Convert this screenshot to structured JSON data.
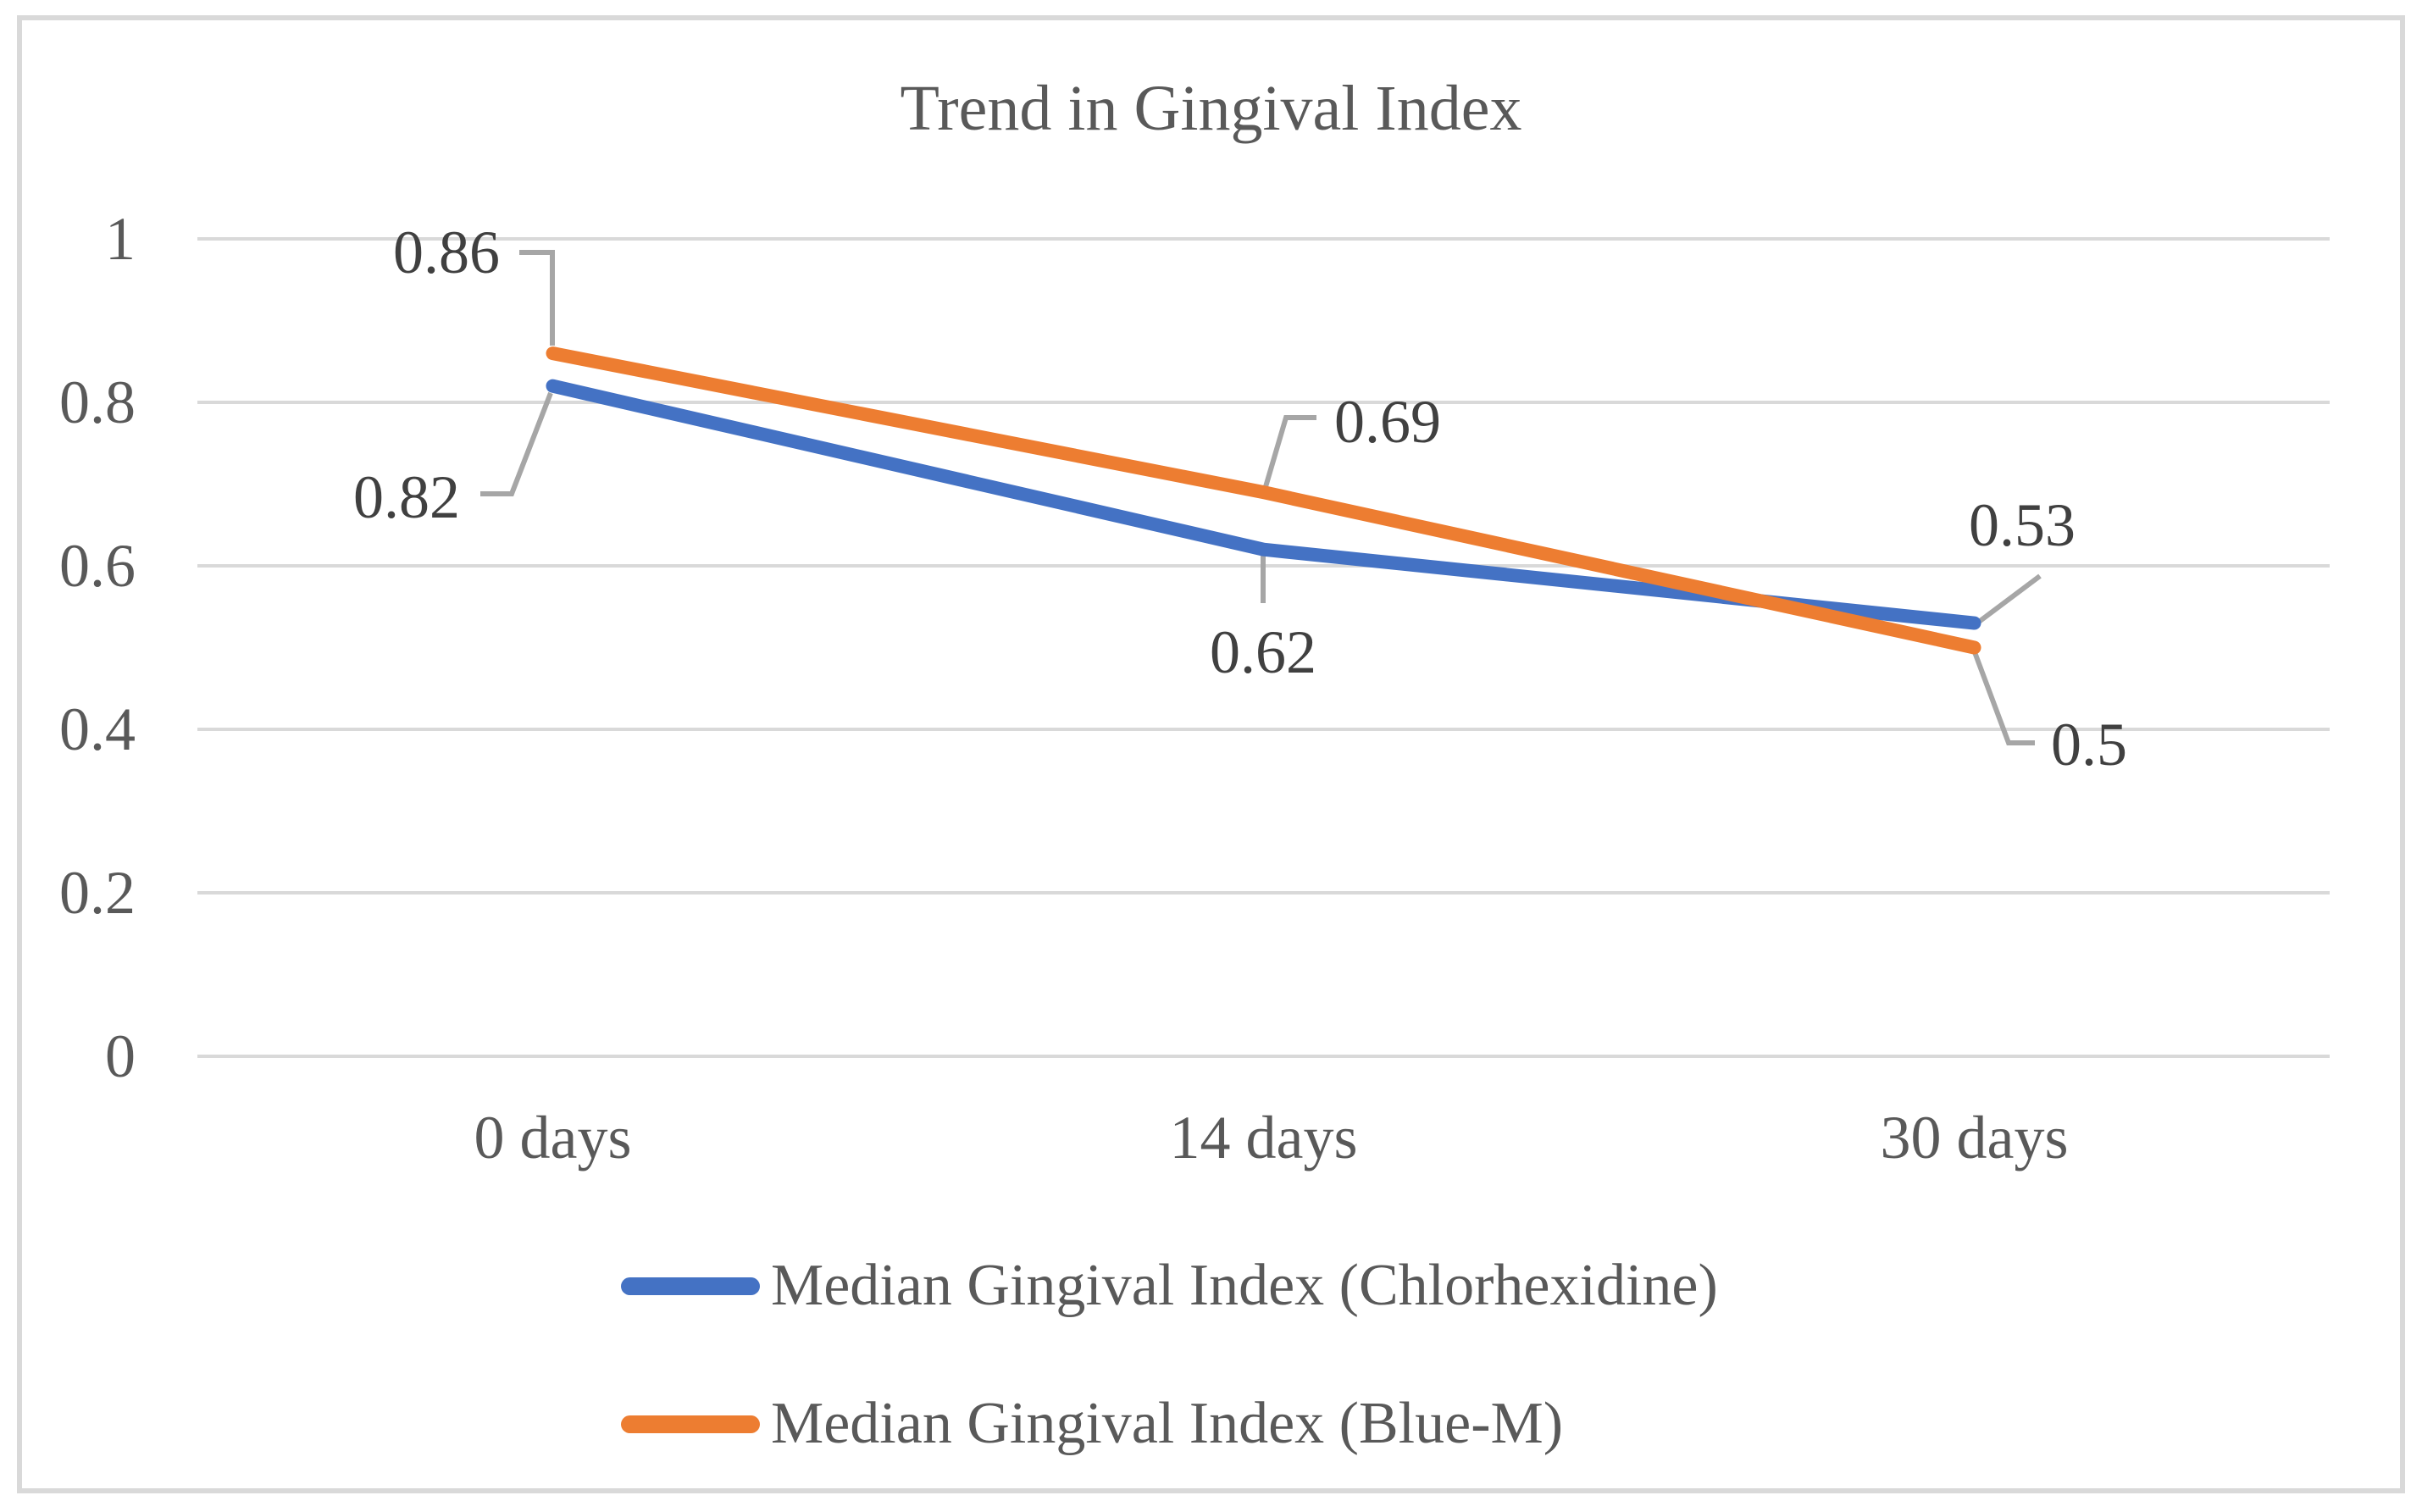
{
  "chart_data": {
    "type": "line",
    "title": "Trend in Gingival Index",
    "categories": [
      "0 days",
      "14 days",
      "30 days"
    ],
    "series": [
      {
        "name": "Median Gingival Index (Chlorhexidine)",
        "color": "#4472C4",
        "values": [
          0.82,
          0.62,
          0.53
        ],
        "point_labels": [
          "0.82",
          "0.62",
          "0.53"
        ]
      },
      {
        "name": "Median Gingival Index (Blue-M)",
        "color": "#ED7D31",
        "values": [
          0.86,
          0.69,
          0.5
        ],
        "point_labels": [
          "0.86",
          "0.69",
          "0.5"
        ]
      }
    ],
    "xlabel": "",
    "ylabel": "",
    "ylim": [
      0,
      1
    ],
    "yticks": [
      0,
      0.2,
      0.4,
      0.6,
      0.8,
      1
    ],
    "ytick_labels": [
      "0",
      "0.2",
      "0.4",
      "0.6",
      "0.8",
      "1"
    ],
    "grid": "horizontal-only",
    "legend_position": "bottom",
    "data_labels_shown": true
  },
  "colors": {
    "gridline": "#D9D9D9",
    "figure_border": "#D9D9D9",
    "axis_text": "#595959",
    "title_text": "#595959",
    "legend_text": "#595959",
    "data_label_text": "#404040",
    "leader_line": "#A6A6A6",
    "background": "#FFFFFF"
  }
}
